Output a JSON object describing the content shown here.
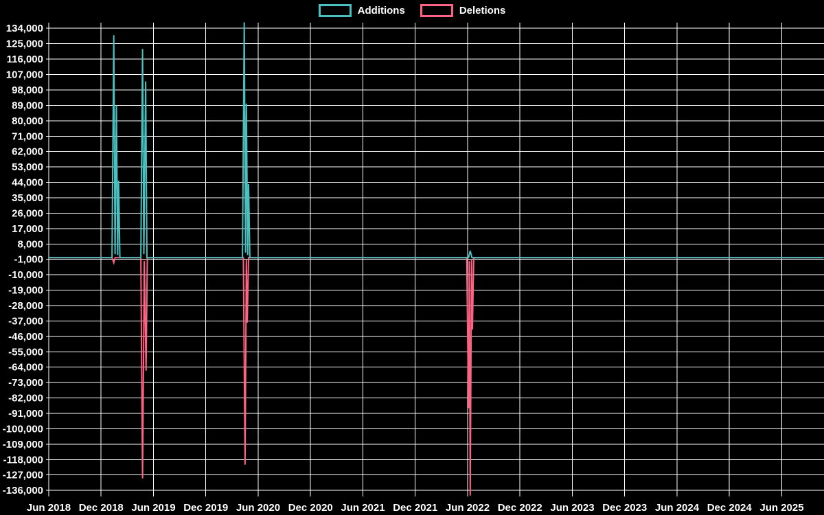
{
  "chart_data": {
    "type": "line",
    "title": "",
    "background_color": "#000000",
    "text_color": "#ffffff",
    "grid": true,
    "grid_color": "#ffffff",
    "legend_position": "top-center",
    "legend": [
      {
        "label": "Additions",
        "color": "#4bc0c0"
      },
      {
        "label": "Deletions",
        "color": "#ff6384"
      }
    ],
    "xlabel": "",
    "ylabel": "",
    "x_unit": "months since Jun 2018",
    "y_range": [
      -139000,
      137500
    ],
    "y_ticks": [
      {
        "v": 134000,
        "label": "134,000"
      },
      {
        "v": 125000,
        "label": "125,000"
      },
      {
        "v": 116000,
        "label": "116,000"
      },
      {
        "v": 107000,
        "label": "107,000"
      },
      {
        "v": 98000,
        "label": "98,000"
      },
      {
        "v": 89000,
        "label": "89,000"
      },
      {
        "v": 80000,
        "label": "80,000"
      },
      {
        "v": 71000,
        "label": "71,000"
      },
      {
        "v": 62000,
        "label": "62,000"
      },
      {
        "v": 53000,
        "label": "53,000"
      },
      {
        "v": 44000,
        "label": "44,000"
      },
      {
        "v": 35000,
        "label": "35,000"
      },
      {
        "v": 26000,
        "label": "26,000"
      },
      {
        "v": 17000,
        "label": "17,000"
      },
      {
        "v": 8000,
        "label": "8,000"
      },
      {
        "v": -1000,
        "label": "-1,000"
      },
      {
        "v": -10000,
        "label": "-10,000"
      },
      {
        "v": -19000,
        "label": "-19,000"
      },
      {
        "v": -28000,
        "label": "-28,000"
      },
      {
        "v": -37000,
        "label": "-37,000"
      },
      {
        "v": -46000,
        "label": "-46,000"
      },
      {
        "v": -55000,
        "label": "-55,000"
      },
      {
        "v": -64000,
        "label": "-64,000"
      },
      {
        "v": -73000,
        "label": "-73,000"
      },
      {
        "v": -82000,
        "label": "-82,000"
      },
      {
        "v": -91000,
        "label": "-91,000"
      },
      {
        "v": -100000,
        "label": "-100,000"
      },
      {
        "v": -109000,
        "label": "-109,000"
      },
      {
        "v": -118000,
        "label": "-118,000"
      },
      {
        "v": -127000,
        "label": "-127,000"
      },
      {
        "v": -136000,
        "label": "-136,000"
      }
    ],
    "x_ticks": [
      {
        "t": 0,
        "label": "Jun 2018"
      },
      {
        "t": 6,
        "label": "Dec 2018"
      },
      {
        "t": 12,
        "label": "Jun 2019"
      },
      {
        "t": 18,
        "label": "Dec 2019"
      },
      {
        "t": 24,
        "label": "Jun 2020"
      },
      {
        "t": 30,
        "label": "Dec 2020"
      },
      {
        "t": 36,
        "label": "Jun 2021"
      },
      {
        "t": 42,
        "label": "Dec 2021"
      },
      {
        "t": 48,
        "label": "Jun 2022"
      },
      {
        "t": 54,
        "label": "Dec 2022"
      },
      {
        "t": 60,
        "label": "Jun 2023"
      },
      {
        "t": 66,
        "label": "Dec 2023"
      },
      {
        "t": 72,
        "label": "Jun 2024"
      },
      {
        "t": 78,
        "label": "Dec 2024"
      },
      {
        "t": 84,
        "label": "Jun 2025"
      }
    ],
    "series": [
      {
        "name": "Additions",
        "color": "#4bc0c0",
        "points": [
          [
            0,
            0
          ],
          [
            7.25,
            0
          ],
          [
            7.45,
            130000
          ],
          [
            7.6,
            2000
          ],
          [
            7.75,
            89000
          ],
          [
            7.9,
            1500
          ],
          [
            8.0,
            45000
          ],
          [
            8.15,
            0
          ],
          [
            10.55,
            0
          ],
          [
            10.75,
            122000
          ],
          [
            10.9,
            2000
          ],
          [
            11.1,
            103000
          ],
          [
            11.25,
            0
          ],
          [
            22.2,
            0
          ],
          [
            22.4,
            137500
          ],
          [
            22.55,
            3000
          ],
          [
            22.65,
            90000
          ],
          [
            22.8,
            1500
          ],
          [
            22.9,
            43000
          ],
          [
            23.05,
            0
          ],
          [
            48.1,
            0
          ],
          [
            48.3,
            4000
          ],
          [
            48.5,
            0
          ],
          [
            88.8,
            0
          ]
        ]
      },
      {
        "name": "Deletions",
        "color": "#ff6384",
        "points": [
          [
            0,
            0
          ],
          [
            7.25,
            0
          ],
          [
            7.45,
            -3000
          ],
          [
            7.6,
            0
          ],
          [
            10.55,
            0
          ],
          [
            10.75,
            -129000
          ],
          [
            10.95,
            -2000
          ],
          [
            11.15,
            -66000
          ],
          [
            11.3,
            0
          ],
          [
            22.3,
            0
          ],
          [
            22.5,
            -121000
          ],
          [
            22.65,
            -1500
          ],
          [
            22.75,
            -38000
          ],
          [
            22.9,
            0
          ],
          [
            47.9,
            0
          ],
          [
            48.1,
            -88000
          ],
          [
            48.2,
            -2000
          ],
          [
            48.3,
            -139000
          ],
          [
            48.45,
            -1500
          ],
          [
            48.55,
            -42000
          ],
          [
            48.7,
            0
          ],
          [
            88.8,
            0
          ]
        ]
      }
    ]
  }
}
